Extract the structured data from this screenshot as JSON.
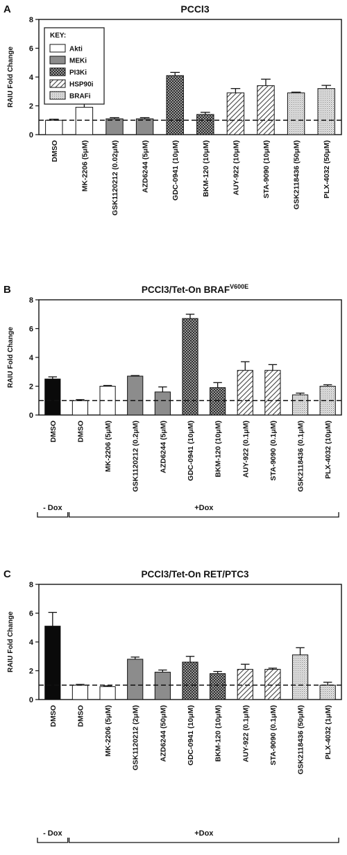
{
  "key": {
    "title": "KEY:",
    "entries": [
      {
        "label": "Akti",
        "pattern": "white"
      },
      {
        "label": "MEKi",
        "pattern": "gray"
      },
      {
        "label": "PI3Ki",
        "pattern": "checker"
      },
      {
        "label": "HSP90i",
        "pattern": "hatch"
      },
      {
        "label": "BRAFi",
        "pattern": "dots"
      }
    ]
  },
  "chart_data": [
    {
      "panel": "A",
      "type": "bar",
      "title": "PCCl3",
      "title_sup": "",
      "ylabel": "RAIU Fold Change",
      "ylim": [
        0,
        8
      ],
      "yticks": [
        "0",
        "2",
        "4",
        "6",
        "8"
      ],
      "reference_line": 1,
      "grid": false,
      "legend": "top-left",
      "categories": [
        "DMSO",
        "MK-2206 (5μM)",
        "GSK1120212 (0.02μM)",
        "AZD6244 (5μM)",
        "GDC-0941 (10μM)",
        "BKM-120 (10μM)",
        "AUY-922 (10μM)",
        "STA-9090 (10μM)",
        "GSK2118436 (50μM)",
        "PLX-4032 (50μM)"
      ],
      "values": [
        1.0,
        1.9,
        1.1,
        1.1,
        4.1,
        1.4,
        2.9,
        3.4,
        2.9,
        3.2
      ],
      "errors": [
        0.07,
        0.25,
        0.08,
        0.08,
        0.22,
        0.15,
        0.3,
        0.45,
        0.05,
        0.22
      ],
      "patterns": [
        "white",
        "white",
        "gray",
        "gray",
        "checker",
        "checker",
        "hatch",
        "hatch",
        "dots",
        "dots"
      ],
      "groups": []
    },
    {
      "panel": "B",
      "type": "bar",
      "title": "PCCl3/Tet-On BRAF",
      "title_sup": "V600E",
      "ylabel": "RAIU Fold Change",
      "ylim": [
        0,
        8
      ],
      "yticks": [
        "0",
        "2",
        "4",
        "6",
        "8"
      ],
      "reference_line": 1,
      "grid": false,
      "categories": [
        "DMSO",
        "DMSO",
        "MK-2206 (5μM)",
        "GSK1120212 (0.2μM)",
        "AZD6244 (5μM)",
        "GDC-0941 (10μM)",
        "BKM-120 (10μM)",
        "AUY-922 (0.1μM)",
        "STA-9090 (0.1μM)",
        "GSK2118436 (0.1μM)",
        "PLX-4032 (10μM)"
      ],
      "values": [
        2.5,
        1.0,
        2.0,
        2.7,
        1.6,
        6.7,
        1.9,
        3.1,
        3.1,
        1.4,
        2.0
      ],
      "errors": [
        0.15,
        0.07,
        0.05,
        0.04,
        0.35,
        0.3,
        0.35,
        0.6,
        0.4,
        0.12,
        0.1
      ],
      "patterns": [
        "black",
        "white",
        "white",
        "gray",
        "gray",
        "checker",
        "checker",
        "hatch",
        "hatch",
        "dots",
        "dots"
      ],
      "groups": [
        {
          "label": "- Dox",
          "from": 0,
          "to": 0
        },
        {
          "label": "+Dox",
          "from": 1,
          "to": 10
        }
      ]
    },
    {
      "panel": "C",
      "type": "bar",
      "title": "PCCl3/Tet-On RET/PTC3",
      "title_sup": "",
      "ylabel": "RAIU Fold Change",
      "ylim": [
        0,
        8
      ],
      "yticks": [
        "0",
        "2",
        "4",
        "6",
        "8"
      ],
      "reference_line": 1,
      "grid": false,
      "categories": [
        "DMSO",
        "DMSO",
        "MK-2206 (5μM)",
        "GSK1120212 (2μM)",
        "AZD6244 (50μM)",
        "GDC-0941 (10μM)",
        "BKM-120 (10μM)",
        "AUY-922 (0.1μM)",
        "STA-9090 (0.1μM)",
        "GSK2118436 (50μM)",
        "PLX-4032 (1μM)"
      ],
      "values": [
        5.1,
        1.0,
        0.9,
        2.8,
        1.9,
        2.6,
        1.8,
        2.1,
        2.1,
        3.1,
        1.0
      ],
      "errors": [
        0.95,
        0.05,
        0.06,
        0.15,
        0.15,
        0.4,
        0.15,
        0.35,
        0.08,
        0.5,
        0.2
      ],
      "patterns": [
        "black",
        "white",
        "white",
        "gray",
        "gray",
        "checker",
        "checker",
        "hatch",
        "hatch",
        "dots",
        "dots"
      ],
      "groups": [
        {
          "label": "- Dox",
          "from": 0,
          "to": 0
        },
        {
          "label": "+Dox",
          "from": 1,
          "to": 10
        }
      ]
    }
  ]
}
